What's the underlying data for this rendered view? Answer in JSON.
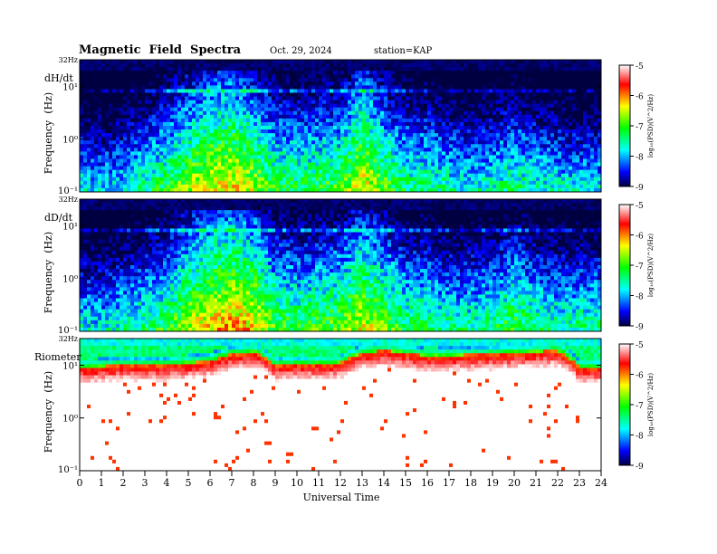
{
  "header": {
    "title": "Magnetic  Field  Spectra",
    "date": "Oct. 29, 2024",
    "station": "station=KAP"
  },
  "colors": {
    "colormap": [
      "#000040",
      "#0000ff",
      "#00ffff",
      "#00ff00",
      "#ffff00",
      "#ff0000",
      "#ffffff"
    ]
  },
  "chart_data": [
    {
      "type": "heatmap",
      "panel": "dH/dt",
      "xlabel": "Universal Time",
      "ylabel": "Frequency  (Hz)",
      "y_scale": "log",
      "ylim": [
        0.1,
        32
      ],
      "y_tick_labels": [
        "32Hz",
        "10¹",
        "10⁰",
        "10⁻¹"
      ],
      "xlim": [
        0,
        24
      ],
      "colorbar": {
        "label": "log₁₀(PSD)(V^2/Hz)",
        "range": [
          -9,
          -5
        ],
        "ticks": [
          "-5",
          "-6",
          "-7",
          "-8",
          "-9"
        ]
      },
      "activity_profile": [
        {
          "hour": 0,
          "level": -7.6
        },
        {
          "hour": 1,
          "level": -7.7
        },
        {
          "hour": 2,
          "level": -7.6
        },
        {
          "hour": 3,
          "level": -7.3
        },
        {
          "hour": 4,
          "level": -7.0
        },
        {
          "hour": 5,
          "level": -6.6
        },
        {
          "hour": 6,
          "level": -6.3
        },
        {
          "hour": 7,
          "level": -6.2
        },
        {
          "hour": 8,
          "level": -6.5
        },
        {
          "hour": 9,
          "level": -7.0
        },
        {
          "hour": 10,
          "level": -7.1
        },
        {
          "hour": 11,
          "level": -7.0
        },
        {
          "hour": 12,
          "level": -6.9
        },
        {
          "hour": 13,
          "level": -6.2
        },
        {
          "hour": 14,
          "level": -6.8
        },
        {
          "hour": 15,
          "level": -7.2
        },
        {
          "hour": 16,
          "level": -7.2
        },
        {
          "hour": 17,
          "level": -7.4
        },
        {
          "hour": 18,
          "level": -7.5
        },
        {
          "hour": 19,
          "level": -7.4
        },
        {
          "hour": 20,
          "level": -7.2
        },
        {
          "hour": 21,
          "level": -7.4
        },
        {
          "hour": 22,
          "level": -7.5
        },
        {
          "hour": 23,
          "level": -7.6
        },
        {
          "hour": 24,
          "level": -7.6
        }
      ]
    },
    {
      "type": "heatmap",
      "panel": "dD/dt",
      "xlabel": "Universal Time",
      "ylabel": "Frequency  (Hz)",
      "y_scale": "log",
      "ylim": [
        0.1,
        32
      ],
      "y_tick_labels": [
        "32Hz",
        "10¹",
        "10⁰",
        "10⁻¹"
      ],
      "xlim": [
        0,
        24
      ],
      "colorbar": {
        "label": "log₁₀(PSD)(V^2/Hz)",
        "range": [
          -9,
          -5
        ],
        "ticks": [
          "-5",
          "-6",
          "-7",
          "-8",
          "-9"
        ]
      },
      "activity_profile": [
        {
          "hour": 0,
          "level": -7.5
        },
        {
          "hour": 1,
          "level": -7.6
        },
        {
          "hour": 2,
          "level": -7.4
        },
        {
          "hour": 3,
          "level": -7.2
        },
        {
          "hour": 4,
          "level": -7.0
        },
        {
          "hour": 5,
          "level": -6.5
        },
        {
          "hour": 6,
          "level": -6.2
        },
        {
          "hour": 7,
          "level": -6.0
        },
        {
          "hour": 8,
          "level": -6.2
        },
        {
          "hour": 9,
          "level": -6.9
        },
        {
          "hour": 10,
          "level": -7.0
        },
        {
          "hour": 11,
          "level": -6.9
        },
        {
          "hour": 12,
          "level": -6.8
        },
        {
          "hour": 13,
          "level": -6.3
        },
        {
          "hour": 14,
          "level": -6.7
        },
        {
          "hour": 15,
          "level": -7.1
        },
        {
          "hour": 16,
          "level": -7.1
        },
        {
          "hour": 17,
          "level": -7.3
        },
        {
          "hour": 18,
          "level": -7.3
        },
        {
          "hour": 19,
          "level": -7.2
        },
        {
          "hour": 20,
          "level": -6.9
        },
        {
          "hour": 21,
          "level": -7.2
        },
        {
          "hour": 22,
          "level": -7.3
        },
        {
          "hour": 23,
          "level": -7.3
        },
        {
          "hour": 24,
          "level": -7.3
        }
      ]
    },
    {
      "type": "heatmap",
      "panel": "Riometer",
      "xlabel": "Universal Time",
      "ylabel": "Frequency  (Hz)",
      "y_scale": "log",
      "ylim": [
        0.1,
        32
      ],
      "y_tick_labels": [
        "32Hz",
        "10¹",
        "10⁰",
        "10⁻¹"
      ],
      "xlim": [
        0,
        24
      ],
      "x_ticks": [
        0,
        1,
        2,
        3,
        4,
        5,
        6,
        7,
        8,
        9,
        10,
        11,
        12,
        13,
        14,
        15,
        16,
        17,
        18,
        19,
        20,
        21,
        22,
        23,
        24
      ],
      "colorbar": {
        "label": "log₁₀(PSD)(V^2/Hz)",
        "range": [
          -9,
          -5
        ],
        "ticks": [
          "-5",
          "-6",
          "-7",
          "-8",
          "-9"
        ]
      },
      "saturation_profile": [
        {
          "hour": 0,
          "freq": 9
        },
        {
          "hour": 2,
          "freq": 10
        },
        {
          "hour": 4,
          "freq": 10
        },
        {
          "hour": 6,
          "freq": 12
        },
        {
          "hour": 7,
          "freq": 16
        },
        {
          "hour": 8,
          "freq": 18
        },
        {
          "hour": 9,
          "freq": 10
        },
        {
          "hour": 12,
          "freq": 11
        },
        {
          "hour": 13,
          "freq": 17
        },
        {
          "hour": 14,
          "freq": 19
        },
        {
          "hour": 16,
          "freq": 15
        },
        {
          "hour": 19,
          "freq": 16
        },
        {
          "hour": 22,
          "freq": 19
        },
        {
          "hour": 23,
          "freq": 9
        },
        {
          "hour": 24,
          "freq": 9
        }
      ]
    }
  ]
}
